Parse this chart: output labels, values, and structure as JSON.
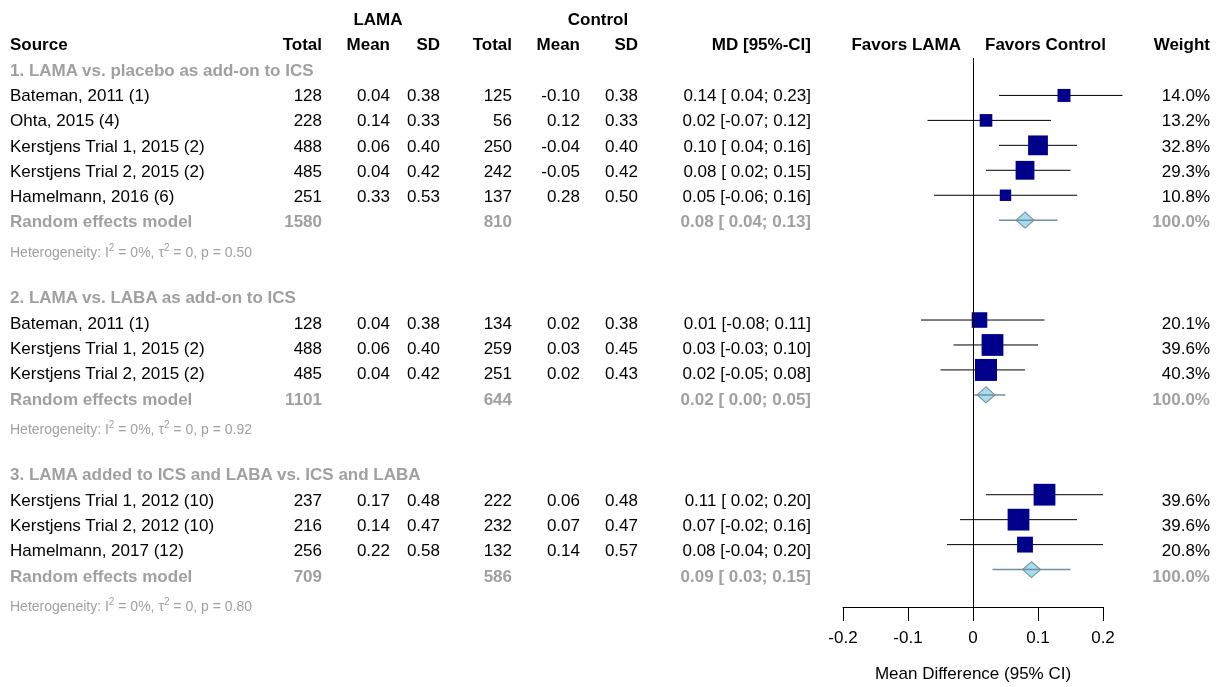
{
  "chart_data": [
    {
      "type": "other",
      "categories": [
        "Source",
        "Total",
        "Mean",
        "SD",
        "Total",
        "Mean",
        "SD",
        "MD [95%-CI]"
      ],
      "annotations": [
        "LAMA",
        "Control"
      ],
      "cell_labels": [
        [
          "1. LAMA vs. placebo as add-on to ICS",
          null,
          null,
          null,
          null,
          null,
          null,
          null
        ],
        [
          "Bateman, 2011 (1)",
          "128",
          "0.04",
          "0.38",
          "125",
          "-0.10",
          "0.38",
          "0.14 [ 0.04; 0.23]"
        ],
        [
          "Ohta, 2015 (4)",
          "228",
          "0.14",
          "0.33",
          "56",
          "0.12",
          "0.33",
          "0.02 [-0.07; 0.12]"
        ],
        [
          "Kerstjens Trial 1, 2015 (2)",
          "488",
          "0.06",
          "0.40",
          "250",
          "-0.04",
          "0.40",
          "0.10 [ 0.04; 0.16]"
        ],
        [
          "Kerstjens Trial 2, 2015 (2)",
          "485",
          "0.04",
          "0.42",
          "242",
          "-0.05",
          "0.42",
          "0.08 [ 0.02; 0.15]"
        ],
        [
          "Hamelmann, 2016 (6)",
          "251",
          "0.33",
          "0.53",
          "137",
          "0.28",
          "0.50",
          "0.05 [-0.06; 0.16]"
        ],
        [
          "Random effects model",
          "1580",
          null,
          null,
          "810",
          null,
          null,
          "0.08 [ 0.04; 0.13]"
        ],
        [
          "Heterogeneity: I$^{2}$ = 0%, τ$^{2}$ = 0, p = 0.50",
          null,
          null,
          null,
          null,
          null,
          null,
          null
        ],
        [
          null,
          null,
          null,
          null,
          null,
          null,
          null,
          null
        ],
        [
          "2. LAMA vs. LABA as add-on to ICS",
          null,
          null,
          null,
          null,
          null,
          null,
          null
        ],
        [
          "Bateman, 2011 (1)",
          "128",
          "0.04",
          "0.38",
          "134",
          "0.02",
          "0.38",
          "0.01 [-0.08; 0.11]"
        ],
        [
          "Kerstjens Trial 1, 2015 (2)",
          "488",
          "0.06",
          "0.40",
          "259",
          "0.03",
          "0.45",
          "0.03 [-0.03; 0.10]"
        ],
        [
          "Kerstjens Trial 2, 2015 (2)",
          "485",
          "0.04",
          "0.42",
          "251",
          "0.02",
          "0.43",
          "0.02 [-0.05; 0.08]"
        ],
        [
          "Random effects model",
          "1101",
          null,
          null,
          "644",
          null,
          null,
          "0.02 [ 0.00; 0.05]"
        ],
        [
          "Heterogeneity: I$^{2}$ = 0%, τ$^{2}$ = 0, p = 0.92",
          null,
          null,
          null,
          null,
          null,
          null,
          null
        ],
        [
          null,
          null,
          null,
          null,
          null,
          null,
          null,
          null
        ],
        [
          "3. LAMA added to ICS and LABA vs. ICS and LABA",
          null,
          null,
          null,
          null,
          null,
          null,
          null
        ],
        [
          "Kerstjens Trial 1, 2012 (10)",
          "237",
          "0.17",
          "0.48",
          "222",
          "0.06",
          "0.48",
          "0.11 [ 0.02; 0.20]"
        ],
        [
          "Kerstjens Trial 2, 2012 (10)",
          "216",
          "0.14",
          "0.47",
          "232",
          "0.07",
          "0.47",
          "0.07 [-0.02; 0.16]"
        ],
        [
          "Hamelmann, 2017 (12)",
          "256",
          "0.22",
          "0.58",
          "132",
          "0.14",
          "0.57",
          "0.08 [-0.04; 0.20]"
        ],
        [
          "Random effects model",
          "709",
          null,
          null,
          "586",
          null,
          null,
          "0.09 [ 0.03; 0.15]"
        ],
        [
          "Heterogeneity: I$^{2}$ = 0%, τ$^{2}$ = 0, p = 0.80",
          null,
          null,
          null,
          null,
          null,
          null,
          null
        ]
      ]
    },
    {
      "type": "scatter",
      "orientation": "horizontal",
      "xlabel": "Mean Difference (95% CI)",
      "annotations": [
        "Favors LAMA",
        "Favors Control"
      ],
      "categories": [
        null,
        null,
        null,
        null,
        null,
        null,
        null,
        null,
        null,
        null,
        null,
        null,
        null,
        null,
        null,
        null,
        null,
        null,
        null,
        null,
        null,
        null
      ],
      "xlim": [
        -0.2,
        0.2
      ],
      "xticks": [
        -0.2,
        -0.1,
        0,
        0.1,
        0.2
      ],
      "tick_labels": "x",
      "ref_lines": [
        {
          "axis": "x",
          "value": 0,
          "color": "#000000"
        }
      ],
      "series": [
        {
          "color": "#00008b",
          "marker": "square",
          "values": [
            null,
            0.14,
            0.02,
            0.1,
            0.08,
            0.05,
            null,
            null,
            null,
            null,
            0.01,
            0.03,
            0.02,
            null,
            null,
            null,
            null,
            0.11,
            0.07,
            0.08,
            null,
            null
          ],
          "errors": [
            null,
            [
              0.04,
              0.23
            ],
            [
              -0.07,
              0.12
            ],
            [
              0.04,
              0.16
            ],
            [
              0.02,
              0.15
            ],
            [
              -0.06,
              0.16
            ],
            null,
            null,
            null,
            null,
            [
              -0.08,
              0.11
            ],
            [
              -0.03,
              0.1
            ],
            [
              -0.05,
              0.08
            ],
            null,
            null,
            null,
            null,
            [
              0.02,
              0.2
            ],
            [
              -0.02,
              0.16
            ],
            [
              -0.04,
              0.2
            ],
            null,
            null
          ],
          "sizes": [
            null,
            0.35,
            0.33,
            0.81,
            0.73,
            0.27,
            null,
            null,
            null,
            null,
            0.5,
            0.98,
            1,
            null,
            null,
            null,
            null,
            0.98,
            0.98,
            0.52,
            null,
            null
          ]
        },
        {
          "color": "#a6dceb",
          "marker": "diamond",
          "values": [
            null,
            null,
            null,
            null,
            null,
            null,
            0.08,
            null,
            null,
            null,
            null,
            null,
            null,
            0.02,
            null,
            null,
            null,
            null,
            null,
            null,
            0.09,
            null
          ],
          "errors": [
            null,
            null,
            null,
            null,
            null,
            null,
            [
              0.04,
              0.13
            ],
            null,
            null,
            null,
            null,
            null,
            null,
            [
              0.0,
              0.05
            ],
            null,
            null,
            null,
            null,
            null,
            null,
            [
              0.03,
              0.15
            ],
            null
          ]
        }
      ]
    },
    {
      "type": "other",
      "categories": [
        "Weight"
      ],
      "cell_labels": [
        [
          null
        ],
        [
          "14.0%"
        ],
        [
          "13.2%"
        ],
        [
          "32.8%"
        ],
        [
          "29.3%"
        ],
        [
          "10.8%"
        ],
        [
          "100.0%"
        ],
        [
          null
        ],
        [
          null
        ],
        [
          null
        ],
        [
          "20.1%"
        ],
        [
          "39.6%"
        ],
        [
          "40.3%"
        ],
        [
          "100.0%"
        ],
        [
          null
        ],
        [
          null
        ],
        [
          null
        ],
        [
          "39.6%"
        ],
        [
          "39.6%"
        ],
        [
          "20.8%"
        ],
        [
          "100.0%"
        ],
        [
          null
        ]
      ]
    }
  ]
}
